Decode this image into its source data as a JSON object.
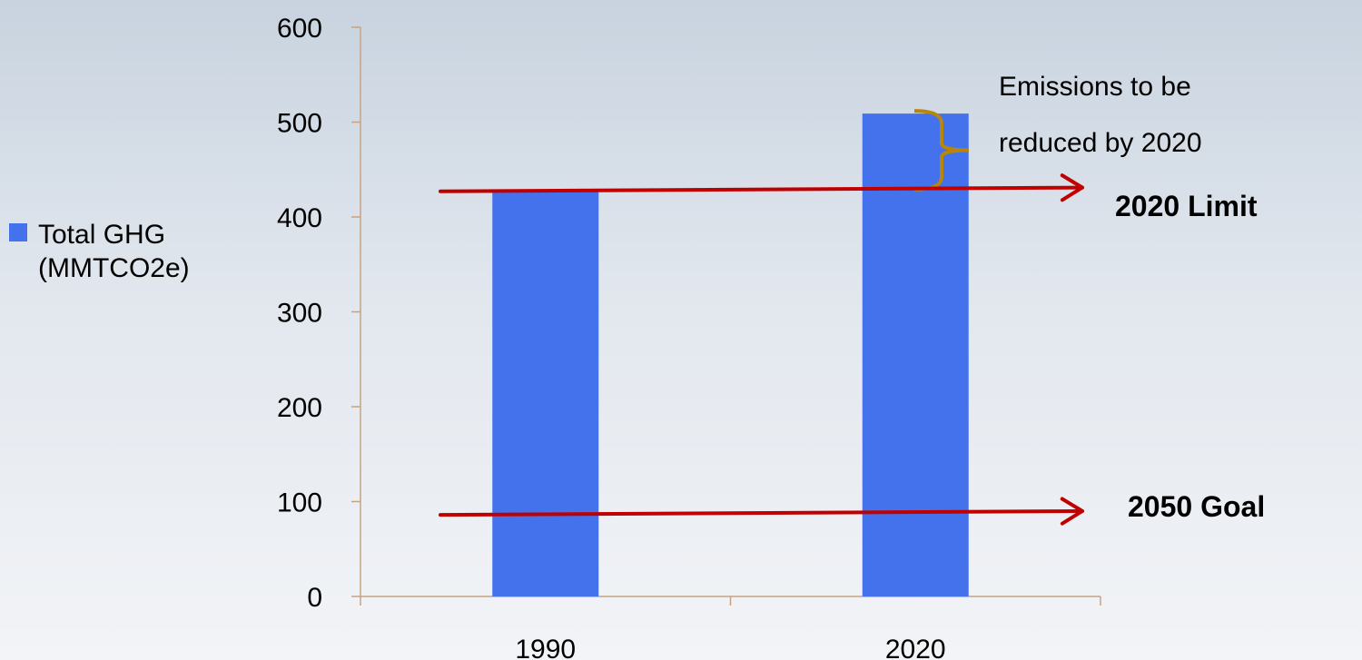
{
  "chart_data": {
    "type": "bar",
    "categories": [
      "1990",
      "2020"
    ],
    "series": [
      {
        "name": "Total GHG (MMTCO2e)",
        "values": [
          427,
          509
        ],
        "color": "#4472ed"
      }
    ],
    "ylim": [
      0,
      600
    ],
    "yticks": [
      "0",
      "100",
      "200",
      "300",
      "400",
      "500",
      "600"
    ],
    "grid": false,
    "legend": {
      "position": "left",
      "lines": [
        "Total GHG",
        "(MMTCO2e)"
      ]
    },
    "axis_color": "#c8a382",
    "annotations": {
      "reduction_note": {
        "lines": [
          "Emissions to be",
          "reduced by 2020"
        ],
        "brace_color": "#b8860b",
        "from_value": 509,
        "to_value": 427
      },
      "limit_line": {
        "label": "2020 Limit",
        "value_start": 427,
        "value_end": 431,
        "color": "#c00000"
      },
      "goal_line": {
        "label": "2050 Goal",
        "value_start": 86,
        "value_end": 90,
        "color": "#c00000"
      }
    }
  }
}
